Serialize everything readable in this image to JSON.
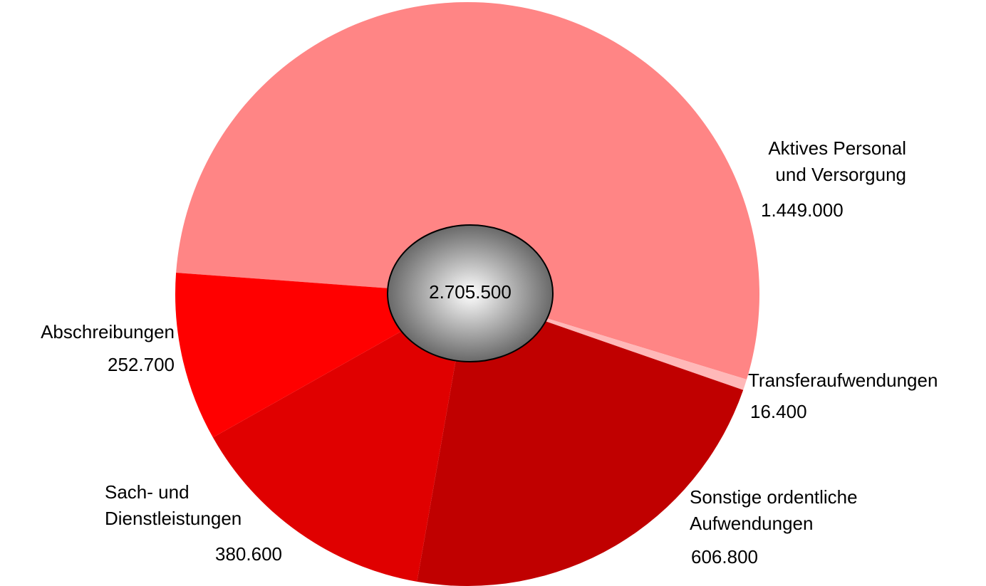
{
  "chart_data": {
    "type": "pie",
    "categories": [
      "Aktives Personal\nund Versorgung",
      "Transferaufwendungen",
      "Sonstige ordentliche\nAufwendungen",
      "Sach- und\nDienstleistungen",
      "Abschreibungen"
    ],
    "values": [
      1449000,
      16400,
      606800,
      380600,
      252700
    ],
    "value_labels": [
      "1.449.000",
      "16.400",
      "606.800",
      "380.600",
      "252.700"
    ],
    "colors": [
      "#ff8585",
      "#ffb8b8",
      "#c00000",
      "#e00000",
      "#ff0000"
    ],
    "center_label": "2.705.500"
  }
}
